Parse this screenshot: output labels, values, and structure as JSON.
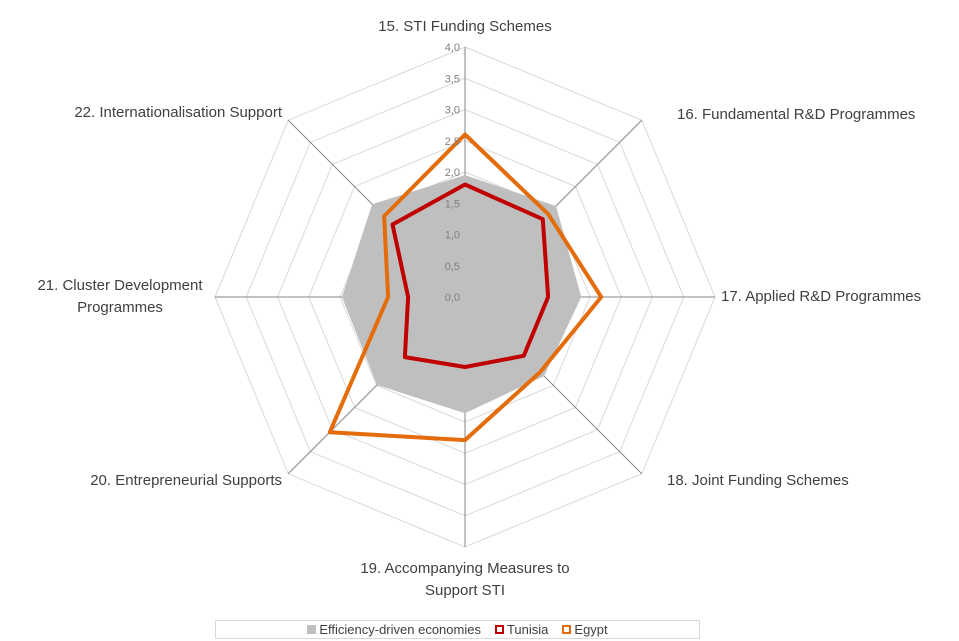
{
  "chart_data": {
    "type": "radar",
    "categories": [
      "15. STI Funding Schemes",
      "16. Fundamental R&D Programmes",
      "17. Applied R&D Programmes",
      "18. Joint Funding Schemes",
      "19. Accompanying Measures to Support STI",
      "20. Entrepreneurial Supports",
      "21. Cluster Development Programmes",
      "22. Internationalisation Support"
    ],
    "series": [
      {
        "name": "Efficiency-driven economies",
        "color": "#bfbfbf",
        "values": [
          1.95,
          2.06,
          1.86,
          1.79,
          1.86,
          1.99,
          1.97,
          2.1
        ]
      },
      {
        "name": "Tunisia",
        "color": "#c00000",
        "values": [
          1.8,
          1.76,
          1.33,
          1.33,
          1.12,
          1.36,
          0.91,
          1.64
        ]
      },
      {
        "name": "Egypt",
        "color": "#e46c0a",
        "values": [
          2.6,
          1.88,
          2.18,
          1.7,
          2.29,
          3.06,
          1.23,
          1.83
        ]
      }
    ],
    "ylim": [
      0,
      4
    ],
    "yticks": [
      {
        "value": 0,
        "label": "0,0"
      },
      {
        "value": 0.5,
        "label": "0,5"
      },
      {
        "value": 1,
        "label": "1,0"
      },
      {
        "value": 1.5,
        "label": "1,5"
      },
      {
        "value": 2,
        "label": "2,0"
      },
      {
        "value": 2.5,
        "label": "2,5"
      },
      {
        "value": 3,
        "label": "3,0"
      },
      {
        "value": 3.5,
        "label": "3,5"
      },
      {
        "value": 4,
        "label": "4,0"
      }
    ],
    "grid": true,
    "legend": "bottom"
  }
}
